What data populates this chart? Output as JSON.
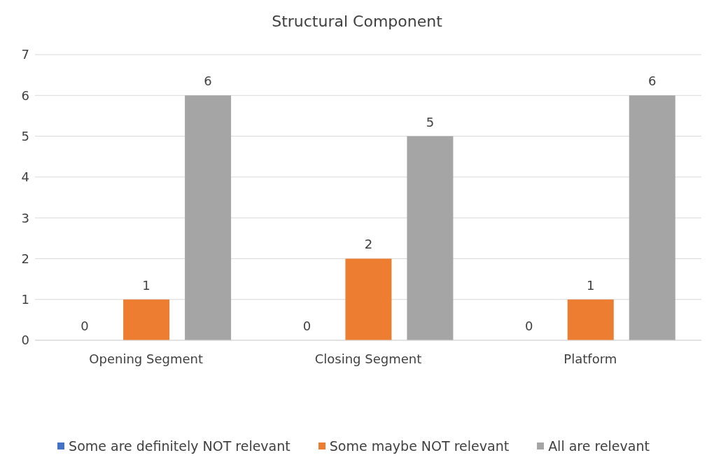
{
  "chart_data": {
    "type": "bar",
    "title": "Structural Component",
    "categories": [
      "Opening Segment",
      "Closing Segment",
      "Platform"
    ],
    "series": [
      {
        "name": "Some are definitely NOT relevant",
        "color": "#4472c4",
        "values": [
          0,
          0,
          0
        ]
      },
      {
        "name": "Some maybe NOT relevant",
        "color": "#ed7d31",
        "values": [
          1,
          2,
          1
        ]
      },
      {
        "name": "All are relevant",
        "color": "#a5a5a5",
        "values": [
          6,
          5,
          6
        ]
      }
    ],
    "ylim": [
      0,
      7
    ],
    "yticks": [
      0,
      1,
      2,
      3,
      4,
      5,
      6,
      7
    ],
    "grid": "y",
    "legend": "bottom",
    "data_labels": true
  }
}
